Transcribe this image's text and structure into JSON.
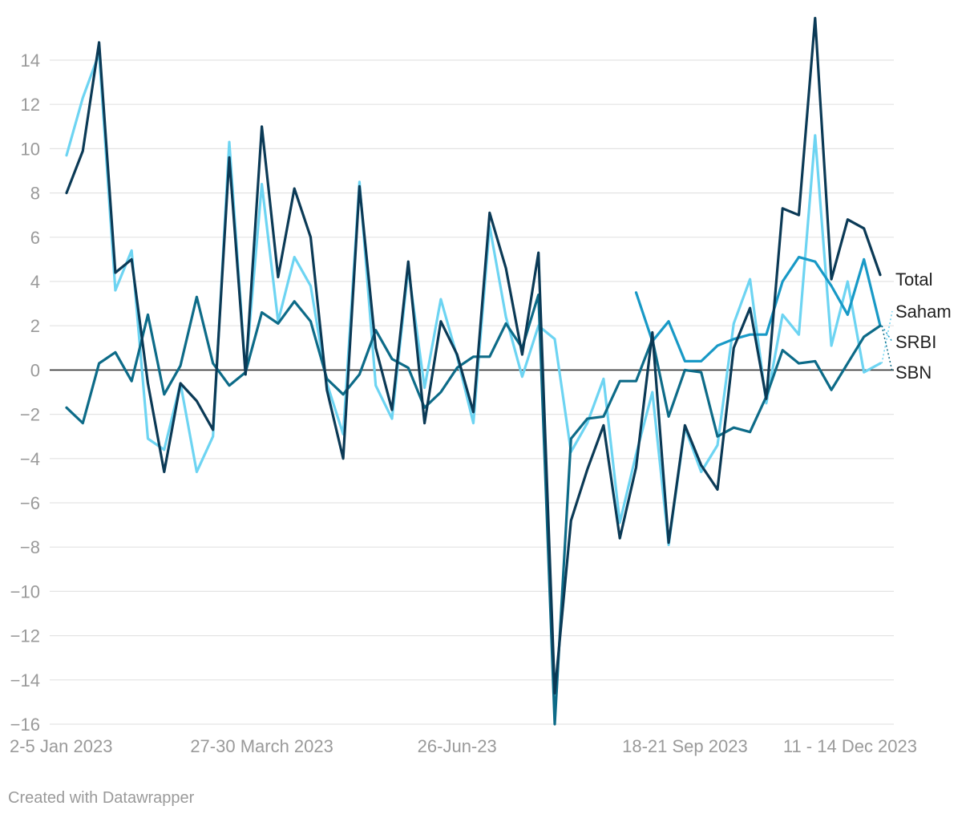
{
  "chart_data": {
    "type": "line",
    "title": "",
    "xlabel": "",
    "ylabel": "",
    "ylim": [
      -16,
      16
    ],
    "y_ticks": [
      14,
      12,
      10,
      8,
      6,
      4,
      2,
      0,
      -2,
      -4,
      -6,
      -8,
      -10,
      -12,
      -14,
      -16
    ],
    "y_tick_labels": [
      "14",
      "12",
      "10",
      "8",
      "6",
      "4",
      "2",
      "0",
      "−2",
      "−4",
      "−6",
      "−8",
      "−10",
      "−12",
      "−14",
      "−16"
    ],
    "x_tick_labels": [
      {
        "index": 0,
        "label": "2-5 Jan 2023"
      },
      {
        "index": 12,
        "label": "27-30 March 2023"
      },
      {
        "index": 24,
        "label": "26-Jun-23"
      },
      {
        "index": 38,
        "label": "18-21 Sep 2023"
      },
      {
        "index": 50,
        "label": "11 - 14 Dec 2023"
      }
    ],
    "grid": true,
    "legend": "inline-right",
    "series": [
      {
        "name": "Saham",
        "color": "#6dd4f2",
        "values": [
          9.7,
          12.3,
          14.3,
          3.6,
          5.4,
          -3.1,
          -3.6,
          -0.6,
          -4.6,
          -3.0,
          10.3,
          -0.1,
          8.4,
          2.2,
          5.1,
          3.8,
          -0.6,
          -2.9,
          8.5,
          -0.7,
          -2.2,
          4.6,
          -0.8,
          3.2,
          0.6,
          -2.4,
          6.5,
          2.4,
          -0.3,
          2.0,
          1.4,
          -3.7,
          -2.4,
          -0.4,
          -6.9,
          -3.8,
          -1.0,
          -7.9,
          -2.6,
          -4.6,
          -3.4,
          2.1,
          4.1,
          -1.5,
          2.5,
          1.6,
          10.6,
          1.1,
          4.0,
          -0.1,
          0.3
        ]
      },
      {
        "name": "SRBI",
        "color": "#1899c6",
        "values": [
          null,
          null,
          null,
          null,
          null,
          null,
          null,
          null,
          null,
          null,
          null,
          null,
          null,
          null,
          null,
          null,
          null,
          null,
          null,
          null,
          null,
          null,
          null,
          null,
          null,
          null,
          null,
          null,
          null,
          null,
          null,
          null,
          null,
          null,
          null,
          3.5,
          1.3,
          2.2,
          0.4,
          0.4,
          1.1,
          1.4,
          1.6,
          1.6,
          4.0,
          5.1,
          4.9,
          3.8,
          2.5,
          5.0,
          2.0
        ]
      },
      {
        "name": "SBN",
        "color": "#0d6b88",
        "values": [
          -1.7,
          -2.4,
          0.3,
          0.8,
          -0.5,
          2.5,
          -1.1,
          0.2,
          3.3,
          0.3,
          -0.7,
          -0.1,
          2.6,
          2.1,
          3.1,
          2.2,
          -0.4,
          -1.1,
          -0.2,
          1.8,
          0.5,
          0.1,
          -1.7,
          -1.0,
          0.1,
          0.6,
          0.6,
          2.1,
          1.0,
          3.4,
          -16.0,
          -3.1,
          -2.2,
          -2.1,
          -0.5,
          -0.5,
          1.4,
          -2.1,
          0.0,
          -0.1,
          -3.0,
          -2.6,
          -2.8,
          -1.2,
          0.9,
          0.3,
          0.4,
          -0.9,
          0.3,
          1.5,
          2.0
        ]
      },
      {
        "name": "Total",
        "color": "#0b3a56",
        "values": [
          8.0,
          9.9,
          14.8,
          4.4,
          5.0,
          -0.6,
          -4.6,
          -0.6,
          -1.4,
          -2.7,
          9.6,
          -0.2,
          11.0,
          4.2,
          8.2,
          6.0,
          -0.9,
          -4.0,
          8.3,
          1.0,
          -1.8,
          4.9,
          -2.4,
          2.2,
          0.7,
          -1.9,
          7.1,
          4.6,
          0.7,
          5.3,
          -14.6,
          -6.8,
          -4.5,
          -2.5,
          -7.6,
          -4.4,
          1.7,
          -7.8,
          -2.5,
          -4.3,
          -5.4,
          1.0,
          2.8,
          -1.3,
          7.3,
          7.0,
          15.9,
          4.1,
          6.8,
          6.4,
          4.3
        ]
      }
    ],
    "series_labels": [
      "Total",
      "Saham",
      "SRBI",
      "SBN"
    ]
  },
  "footer": {
    "credit": "Created with Datawrapper"
  }
}
